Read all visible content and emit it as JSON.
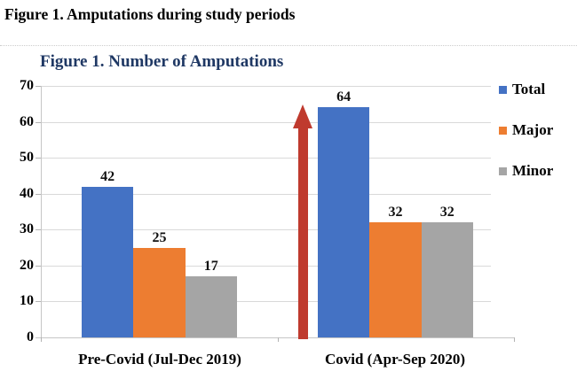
{
  "document": {
    "caption": "Figure 1. Amputations during study periods"
  },
  "chart_data": {
    "type": "bar",
    "title": "Figure 1. Number of Amputations",
    "title_color": "#1f3864",
    "categories": [
      "Pre-Covid (Jul-Dec 2019)",
      "Covid (Apr-Sep 2020)"
    ],
    "series": [
      {
        "name": "Total",
        "color": "#4472c4",
        "values": [
          42,
          64
        ]
      },
      {
        "name": "Major",
        "color": "#ed7d31",
        "values": [
          25,
          32
        ]
      },
      {
        "name": "Minor",
        "color": "#a5a5a5",
        "values": [
          17,
          32
        ]
      }
    ],
    "ylim": [
      0,
      70
    ],
    "ytick_step": 10,
    "grid": true,
    "legend_position": "right",
    "value_labels": true,
    "annotations": [
      {
        "type": "up-arrow",
        "color": "#bf3a2e",
        "target": "Covid Total bar"
      }
    ]
  }
}
